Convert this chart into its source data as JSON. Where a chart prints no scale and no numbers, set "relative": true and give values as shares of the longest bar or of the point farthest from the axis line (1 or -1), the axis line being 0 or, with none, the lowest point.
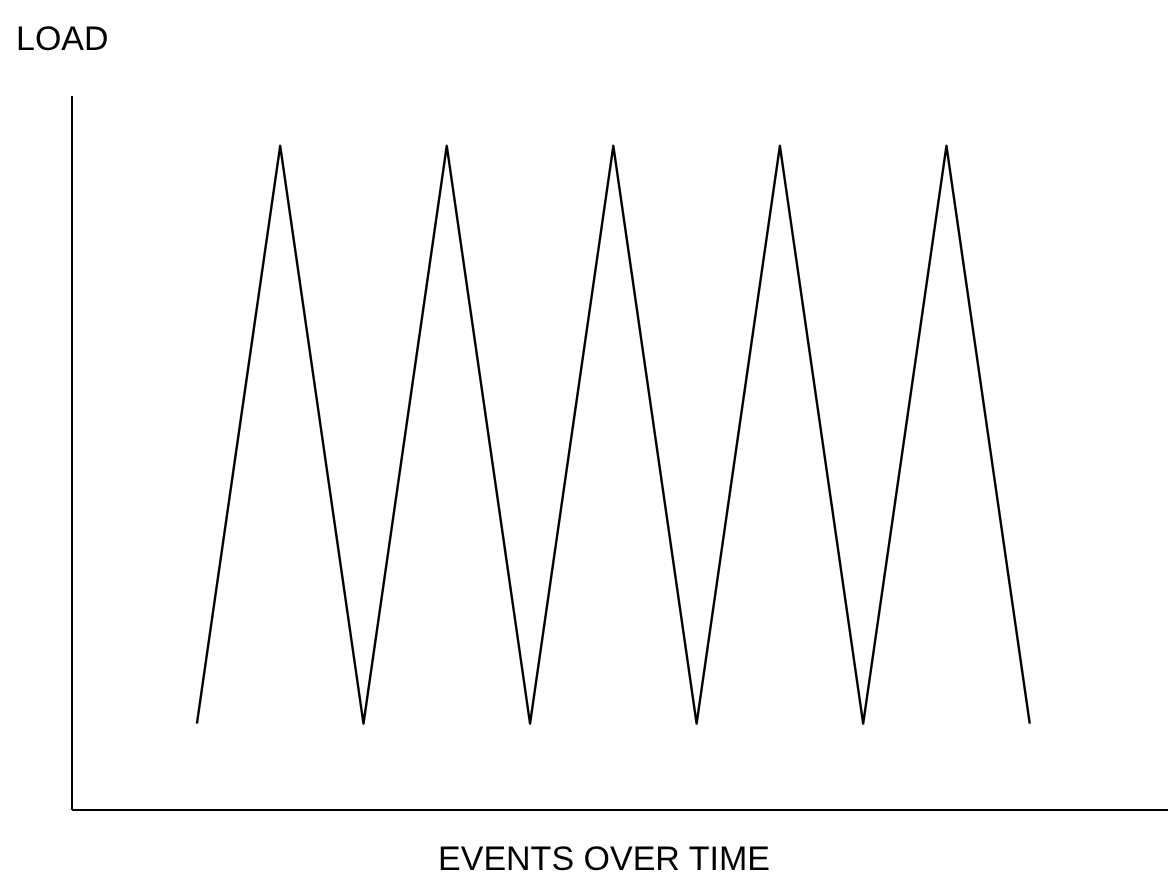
{
  "chart_data": {
    "type": "line",
    "relative": true,
    "xlabel": "EVENTS OVER TIME",
    "ylabel": "LOAD",
    "categories": [
      null,
      null,
      null,
      null,
      null,
      null,
      null,
      null,
      null,
      null,
      null
    ],
    "series": [
      {
        "color": "#000000",
        "values": [
          0.13,
          1,
          0.13,
          1,
          0.13,
          1,
          0.13,
          1,
          0.13,
          1,
          0.13
        ]
      }
    ],
    "marker": "none",
    "grid": false
  }
}
